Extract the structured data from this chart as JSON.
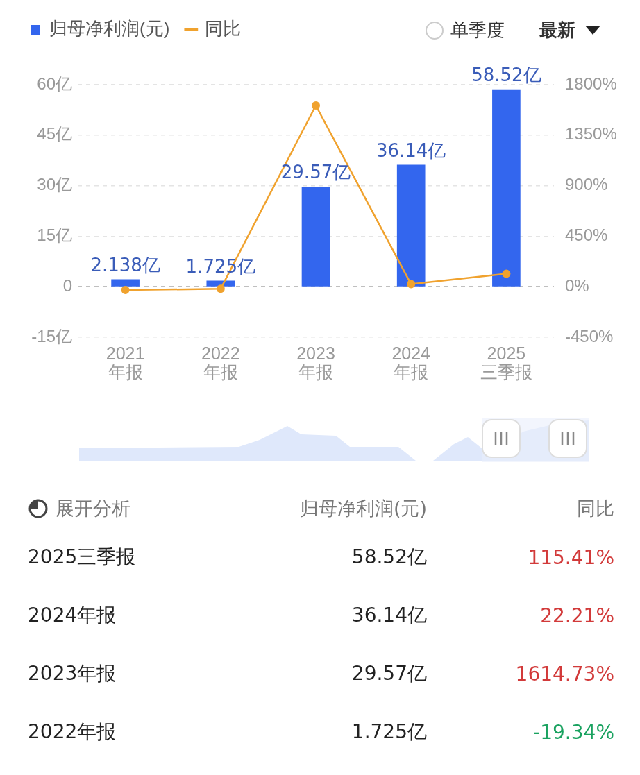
{
  "chart_data": {
    "type": "bar",
    "categories": [
      "2021年报",
      "2022年报",
      "2023年报",
      "2024年报",
      "2025三季报"
    ],
    "series": [
      {
        "name": "归母净利润(元)",
        "color": "#3366ee",
        "values": [
          2.138,
          1.725,
          29.57,
          36.14,
          58.52
        ],
        "value_labels": [
          "2.138亿",
          "1.725亿",
          "29.57亿",
          "36.14亿",
          "58.52亿"
        ]
      },
      {
        "name": "同比",
        "type": "line",
        "axis": "y2",
        "color": "#f0a22e",
        "values": [
          -30,
          -19.34,
          1614.73,
          22.21,
          115.41
        ]
      }
    ],
    "ylim": [
      -15,
      60
    ],
    "yticks": [
      {
        "value": -15,
        "label": "-15亿"
      },
      0,
      {
        "value": 15,
        "label": "15亿"
      },
      {
        "value": 30,
        "label": "30亿"
      },
      {
        "value": 45,
        "label": "45亿"
      },
      {
        "value": 60,
        "label": "60亿"
      }
    ],
    "y2lim": [
      -450,
      1800
    ],
    "y2ticks": [
      {
        "value": -450,
        "label": "-450%"
      },
      {
        "value": 0,
        "label": "0%"
      },
      {
        "value": 450,
        "label": "450%"
      },
      {
        "value": 900,
        "label": "900%"
      },
      {
        "value": 1350,
        "label": "1350%"
      },
      {
        "value": 1800,
        "label": "1800%"
      }
    ],
    "ref_lines": [
      {
        "axis": "y",
        "value": 0,
        "color": "#999999",
        "line_style": "dashed"
      }
    ],
    "grid": "y",
    "legend": "top left",
    "marker": "circle",
    "annotations": [
      "单季度",
      "最新",
      "展开分析",
      "115.41%",
      "22.21%",
      "1614.73%",
      "-19.34%"
    ]
  }
}
